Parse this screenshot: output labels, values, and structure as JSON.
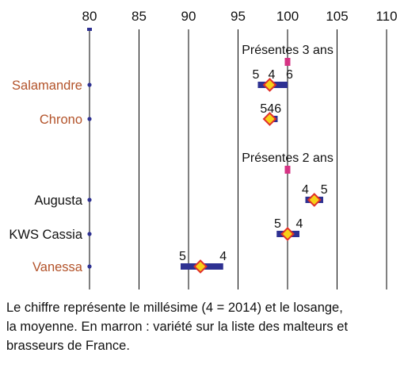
{
  "chart_data": {
    "type": "range-dot",
    "x_axis": {
      "min": 80,
      "max": 110,
      "ticks": [
        80,
        85,
        90,
        95,
        100,
        105,
        110
      ],
      "grid": "vertical"
    },
    "colors": {
      "range_bar": "#2e3192",
      "mean_fill": "#f7d117",
      "mean_stroke": "#e0302b",
      "reference_marker": "#d63384",
      "maltster_variety": "#b3532a",
      "other_variety": "#111111",
      "grid": "#000000"
    },
    "rows": [
      {
        "kind": "reference",
        "label": "Présentes 3 ans",
        "value": 100
      },
      {
        "kind": "variety",
        "name": "Salamandre",
        "maltster_list": true,
        "min": 97.0,
        "max": 100.0,
        "mean": 98.2,
        "year_labels": [
          {
            "text": "5",
            "x": 96.8
          },
          {
            "text": "4",
            "x": 98.4
          },
          {
            "text": "6",
            "x": 100.2
          }
        ]
      },
      {
        "kind": "variety",
        "name": "Chrono",
        "maltster_list": true,
        "min": 97.9,
        "max": 99.0,
        "mean": 98.2,
        "year_labels": [
          {
            "text": "546",
            "x": 98.3
          }
        ]
      },
      {
        "kind": "reference",
        "label": "Présentes 2 ans",
        "value": 100
      },
      {
        "kind": "variety",
        "name": "Augusta",
        "maltster_list": false,
        "min": 101.8,
        "max": 103.6,
        "mean": 102.7,
        "year_labels": [
          {
            "text": "4",
            "x": 101.8
          },
          {
            "text": "5",
            "x": 103.7
          }
        ]
      },
      {
        "kind": "variety",
        "name": "KWS Cassia",
        "maltster_list": false,
        "min": 98.9,
        "max": 101.2,
        "mean": 100.0,
        "year_labels": [
          {
            "text": "5",
            "x": 99.0
          },
          {
            "text": "4",
            "x": 101.2
          }
        ]
      },
      {
        "kind": "variety",
        "name": "Vanessa",
        "maltster_list": true,
        "min": 89.2,
        "max": 93.5,
        "mean": 91.2,
        "year_labels": [
          {
            "text": "5",
            "x": 89.4
          },
          {
            "text": "4",
            "x": 93.5
          }
        ]
      }
    ]
  },
  "caption": {
    "line1": "Le chiffre représente le millésime (4 = 2014) et le losange,",
    "line2": "la moyenne. En marron : variété sur la liste des malteurs et",
    "line3": "brasseurs de France."
  }
}
